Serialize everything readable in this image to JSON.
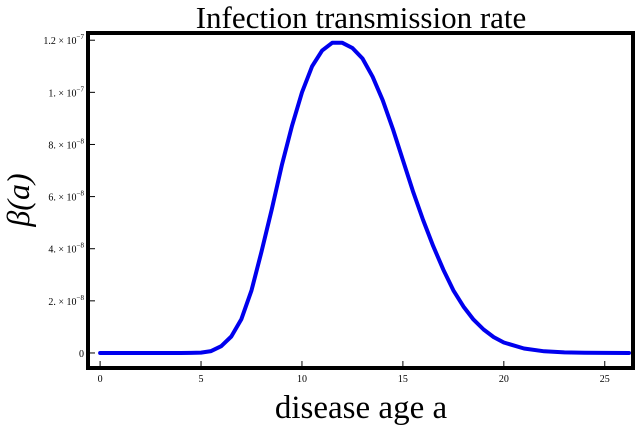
{
  "chart_data": {
    "type": "line",
    "title": "Infection transmission rate",
    "xlabel": "disease age a",
    "ylabel": "β(a)",
    "xlim": [
      -0.5,
      26.3
    ],
    "ylim": [
      -5e-09,
      1.22e-07
    ],
    "grid": false,
    "line_color": "#0000ee",
    "frame_color": "#000000",
    "x_ticks": [
      {
        "value": 0,
        "label": "0"
      },
      {
        "value": 5,
        "label": "5"
      },
      {
        "value": 10,
        "label": "10"
      },
      {
        "value": 15,
        "label": "15"
      },
      {
        "value": 20,
        "label": "20"
      },
      {
        "value": 25,
        "label": "25"
      }
    ],
    "y_ticks": [
      {
        "value": 0,
        "mantissa": "0",
        "exponent": ""
      },
      {
        "value": 2e-08,
        "mantissa": "2. × 10",
        "exponent": "−8"
      },
      {
        "value": 4e-08,
        "mantissa": "4. × 10",
        "exponent": "−8"
      },
      {
        "value": 6e-08,
        "mantissa": "6. × 10",
        "exponent": "−8"
      },
      {
        "value": 8e-08,
        "mantissa": "8. × 10",
        "exponent": "−8"
      },
      {
        "value": 1e-07,
        "mantissa": "1. × 10",
        "exponent": "−7"
      },
      {
        "value": 1.2e-07,
        "mantissa": "1.2 × 10",
        "exponent": "−7"
      }
    ],
    "series": [
      {
        "name": "β(a)",
        "x": [
          0,
          1,
          2,
          3,
          4,
          4.5,
          5,
          5.5,
          6,
          6.5,
          7,
          7.5,
          8,
          8.5,
          9,
          9.5,
          10,
          10.5,
          11,
          11.5,
          12,
          12.5,
          13,
          13.5,
          14,
          14.5,
          15,
          15.5,
          16,
          16.5,
          17,
          17.5,
          18,
          18.5,
          19,
          19.5,
          20,
          21,
          22,
          23,
          24,
          25,
          26.2
        ],
        "y": [
          0,
          0,
          0,
          0,
          0,
          2e-11,
          1.5e-10,
          7e-10,
          2.6e-09,
          6.3e-09,
          1.3e-08,
          2.4e-08,
          3.9e-08,
          5.5e-08,
          7.2e-08,
          8.7e-08,
          1e-07,
          1.1e-07,
          1.16e-07,
          1.19e-07,
          1.19e-07,
          1.17e-07,
          1.13e-07,
          1.06e-07,
          9.7e-08,
          8.6e-08,
          7.4e-08,
          6.2e-08,
          5.1e-08,
          4.1e-08,
          3.2e-08,
          2.4e-08,
          1.78e-08,
          1.28e-08,
          9e-09,
          6.1e-09,
          4e-09,
          1.7e-09,
          6.3e-10,
          2.2e-10,
          7e-11,
          2e-11,
          0
        ]
      }
    ]
  }
}
